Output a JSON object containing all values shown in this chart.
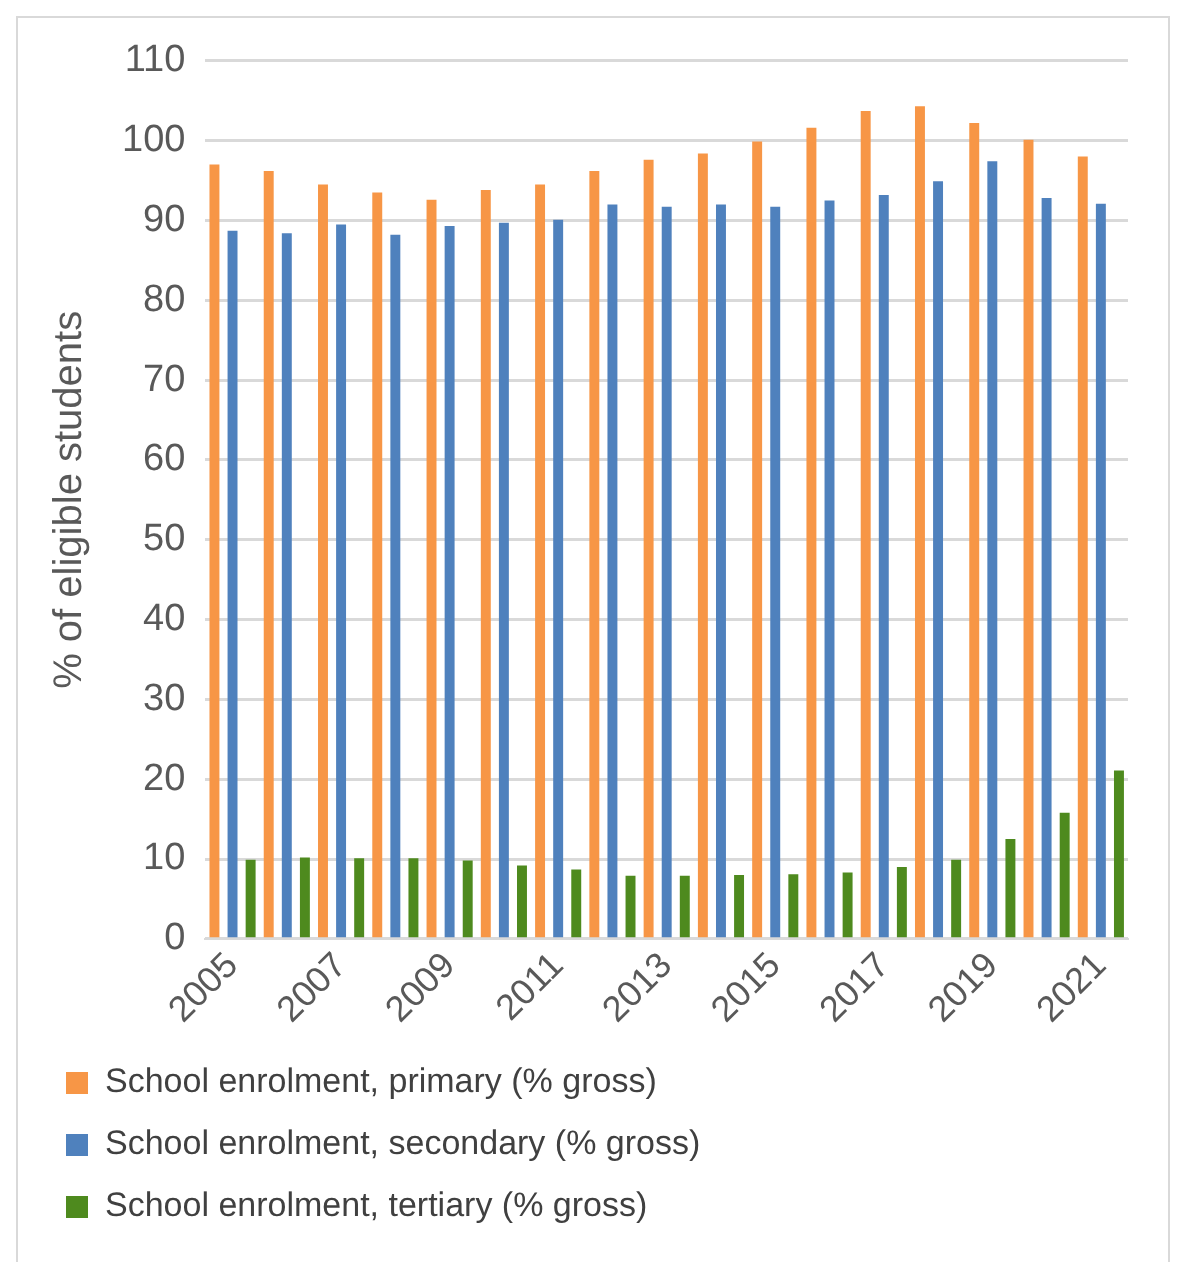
{
  "chart_data": {
    "type": "bar",
    "ylabel": "% of eligible students",
    "categories": [
      "2005",
      null,
      "2007",
      null,
      "2009",
      null,
      "2011",
      null,
      "2013",
      null,
      "2015",
      null,
      "2017",
      null,
      "2019",
      null,
      "2021"
    ],
    "series": [
      {
        "name": "School enrolment, primary (% gross)",
        "color": "#f79646",
        "values": [
          97.0,
          96.2,
          94.5,
          93.5,
          92.6,
          93.8,
          94.5,
          96.2,
          97.6,
          98.4,
          99.9,
          101.6,
          103.7,
          104.3,
          102.2,
          100.1,
          98.0
        ]
      },
      {
        "name": "School enrolment, secondary (% gross)",
        "color": "#4f81bd",
        "values": [
          88.7,
          88.4,
          89.5,
          88.2,
          89.3,
          89.7,
          90.1,
          92.0,
          91.7,
          92.0,
          91.7,
          92.5,
          93.2,
          94.9,
          97.4,
          92.8,
          92.1
        ]
      },
      {
        "name": "School enrolment, tertiary (% gross)",
        "color": "#4e8a1e",
        "values": [
          9.9,
          10.2,
          10.1,
          10.1,
          9.8,
          9.2,
          8.7,
          7.9,
          7.9,
          8.0,
          8.1,
          8.3,
          9.0,
          9.9,
          12.5,
          15.8,
          21.1
        ]
      }
    ],
    "ylim": [
      0,
      110
    ],
    "yticks": [
      0,
      10,
      20,
      30,
      40,
      50,
      60,
      70,
      80,
      90,
      100,
      110
    ],
    "grid": "y",
    "legend": "bottom"
  }
}
